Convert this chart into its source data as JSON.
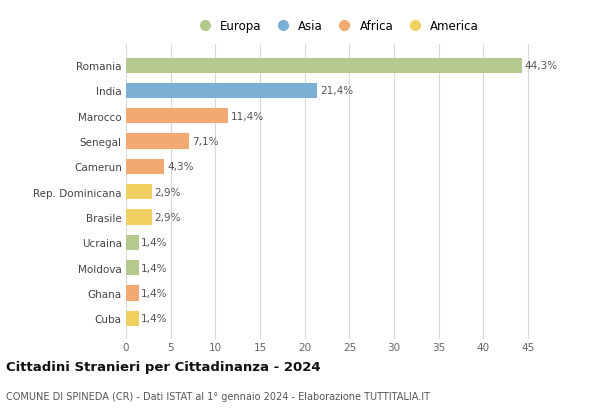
{
  "countries": [
    "Romania",
    "India",
    "Marocco",
    "Senegal",
    "Camerun",
    "Rep. Dominicana",
    "Brasile",
    "Ucraina",
    "Moldova",
    "Ghana",
    "Cuba"
  ],
  "values": [
    44.3,
    21.4,
    11.4,
    7.1,
    4.3,
    2.9,
    2.9,
    1.4,
    1.4,
    1.4,
    1.4
  ],
  "labels": [
    "44,3%",
    "21,4%",
    "11,4%",
    "7,1%",
    "4,3%",
    "2,9%",
    "2,9%",
    "1,4%",
    "1,4%",
    "1,4%",
    "1,4%"
  ],
  "colors": [
    "#b5c98e",
    "#7bafd4",
    "#f2aa72",
    "#f2aa72",
    "#f2aa72",
    "#f0d060",
    "#f0d060",
    "#b5c98e",
    "#b5c98e",
    "#f2aa72",
    "#f0d060"
  ],
  "legend_labels": [
    "Europa",
    "Asia",
    "Africa",
    "America"
  ],
  "legend_colors": [
    "#b5c98e",
    "#7bafd4",
    "#f2aa72",
    "#f0d060"
  ],
  "title": "Cittadini Stranieri per Cittadinanza - 2024",
  "subtitle": "COMUNE DI SPINEDA (CR) - Dati ISTAT al 1° gennaio 2024 - Elaborazione TUTTITALIA.IT",
  "xlim": [
    0,
    47
  ],
  "xticks": [
    0,
    5,
    10,
    15,
    20,
    25,
    30,
    35,
    40,
    45
  ],
  "bg_color": "#ffffff",
  "grid_color": "#d8d8d8"
}
